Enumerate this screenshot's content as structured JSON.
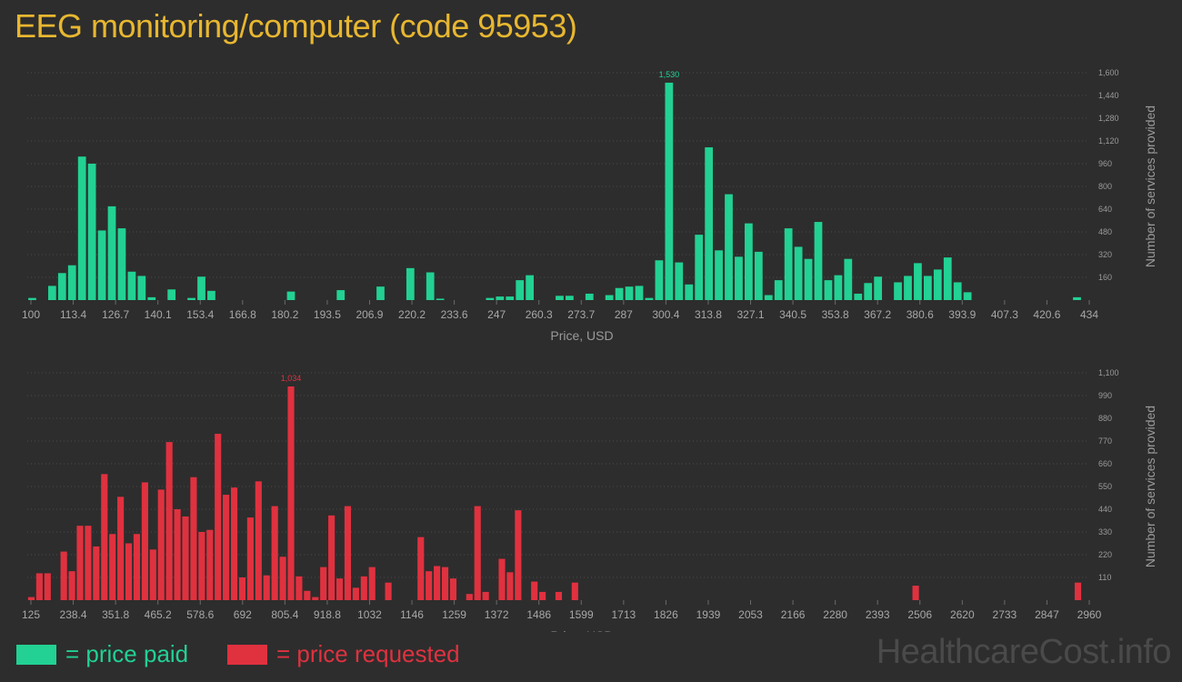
{
  "page": {
    "title": "EEG monitoring/computer (code 95953)",
    "watermark": "HealthcareCost.info"
  },
  "legend": {
    "paid_label": "= price paid",
    "requested_label": "= price requested",
    "paid_color": "#22d193",
    "requested_color": "#e0313f"
  },
  "chart_data": [
    {
      "id": "paid",
      "type": "bar",
      "color": "#22d193",
      "xlabel": "Price, USD",
      "ylabel": "Number of services provided",
      "ylim": [
        0,
        1600
      ],
      "grid": true,
      "y_ticks": [
        "160",
        "320",
        "480",
        "640",
        "800",
        "960",
        "1,120",
        "1,280",
        "1,440",
        "1,600"
      ],
      "x_tick_labels": [
        "100",
        "113.4",
        "126.7",
        "140.1",
        "153.4",
        "166.8",
        "180.2",
        "193.5",
        "206.9",
        "220.2",
        "233.6",
        "247",
        "260.3",
        "273.7",
        "287",
        "300.4",
        "313.8",
        "327.1",
        "340.5",
        "353.8",
        "367.2",
        "380.6",
        "393.9",
        "407.3",
        "420.6",
        "434"
      ],
      "peak_label": "1,530",
      "values": [
        15,
        0,
        100,
        190,
        245,
        1010,
        960,
        490,
        660,
        505,
        200,
        170,
        20,
        0,
        75,
        0,
        15,
        165,
        65,
        0,
        0,
        0,
        0,
        0,
        0,
        0,
        60,
        0,
        0,
        0,
        0,
        70,
        0,
        0,
        0,
        95,
        0,
        0,
        225,
        0,
        195,
        10,
        0,
        0,
        0,
        0,
        15,
        25,
        25,
        140,
        175,
        0,
        0,
        30,
        30,
        0,
        45,
        0,
        35,
        85,
        95,
        100,
        15,
        280,
        1530,
        265,
        110,
        460,
        1075,
        350,
        745,
        305,
        540,
        340,
        35,
        140,
        505,
        375,
        290,
        550,
        140,
        175,
        290,
        45,
        120,
        165,
        0,
        125,
        170,
        260,
        170,
        215,
        300,
        125,
        55,
        0,
        0,
        0,
        0,
        0,
        0,
        0,
        0,
        0,
        0,
        20
      ]
    },
    {
      "id": "requested",
      "type": "bar",
      "color": "#e0313f",
      "xlabel": "Price, USD",
      "ylabel": "Number of services provided",
      "ylim": [
        0,
        1100
      ],
      "grid": true,
      "y_ticks": [
        "110",
        "220",
        "330",
        "440",
        "550",
        "660",
        "770",
        "880",
        "990",
        "1,100"
      ],
      "x_tick_labels": [
        "125",
        "238.4",
        "351.8",
        "465.2",
        "578.6",
        "692",
        "805.4",
        "918.8",
        "1032",
        "1146",
        "1259",
        "1372",
        "1486",
        "1599",
        "1713",
        "1826",
        "1939",
        "2053",
        "2166",
        "2280",
        "2393",
        "2506",
        "2620",
        "2733",
        "2847",
        "2960"
      ],
      "peak_label": "1,034",
      "values": [
        15,
        130,
        130,
        0,
        235,
        140,
        360,
        360,
        260,
        610,
        320,
        500,
        275,
        320,
        570,
        245,
        535,
        765,
        440,
        405,
        595,
        330,
        340,
        805,
        510,
        545,
        110,
        400,
        575,
        120,
        455,
        210,
        1034,
        115,
        45,
        15,
        160,
        410,
        105,
        455,
        60,
        115,
        160,
        0,
        85,
        0,
        0,
        0,
        305,
        140,
        165,
        160,
        105,
        0,
        30,
        455,
        40,
        0,
        200,
        135,
        435,
        0,
        90,
        40,
        0,
        40,
        0,
        85,
        0,
        0,
        0,
        0,
        0,
        0,
        0,
        0,
        0,
        0,
        0,
        0,
        0,
        0,
        0,
        0,
        0,
        0,
        0,
        0,
        0,
        0,
        0,
        0,
        0,
        0,
        0,
        0,
        0,
        0,
        0,
        0,
        0,
        0,
        0,
        0,
        0,
        0,
        0,
        0,
        0,
        70,
        0,
        0,
        0,
        0,
        0,
        0,
        0,
        0,
        0,
        0,
        0,
        0,
        0,
        0,
        0,
        0,
        0,
        0,
        0,
        85
      ]
    }
  ]
}
